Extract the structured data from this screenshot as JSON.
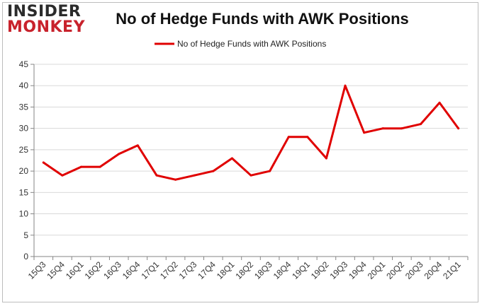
{
  "logo": {
    "line1": "INSIDER",
    "line2": "MONKEY"
  },
  "chart_data": {
    "type": "line",
    "title": "No of Hedge Funds with AWK Positions",
    "categories": [
      "15Q3",
      "15Q4",
      "16Q1",
      "16Q2",
      "16Q3",
      "16Q4",
      "17Q1",
      "17Q2",
      "17Q3",
      "17Q4",
      "18Q1",
      "18Q2",
      "18Q3",
      "18Q4",
      "19Q1",
      "19Q2",
      "19Q3",
      "19Q4",
      "20Q1",
      "20Q2",
      "20Q3",
      "20Q4",
      "21Q1"
    ],
    "series": [
      {
        "name": "No of Hedge Funds with AWK Positions",
        "color": "#e00000",
        "values": [
          22,
          19,
          21,
          21,
          24,
          26,
          19,
          18,
          19,
          20,
          23,
          19,
          20,
          28,
          28,
          23,
          40,
          29,
          30,
          30,
          31,
          36,
          30
        ]
      }
    ],
    "ylim": [
      0,
      45
    ],
    "yticks": [
      0,
      5,
      10,
      15,
      20,
      25,
      30,
      35,
      40,
      45
    ],
    "grid": true,
    "legend_position": "top-center",
    "colors": {
      "line": "#e00000",
      "grid": "#d9d9d9",
      "axis": "#868686"
    }
  }
}
